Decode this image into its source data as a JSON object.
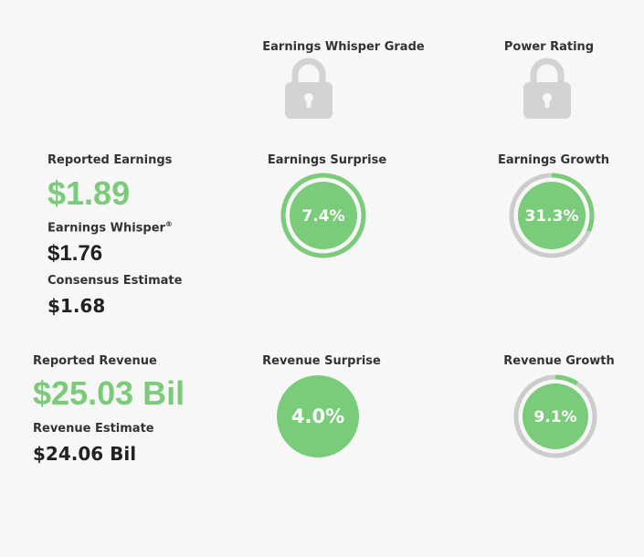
{
  "headers": {
    "whisper_grade": "Earnings Whisper Grade",
    "power_rating": "Power Rating"
  },
  "earnings": {
    "reported_label": "Reported Earnings",
    "reported_value": "$1.89",
    "whisper_label": "Earnings Whisper",
    "whisper_mark": "®",
    "whisper_value": "$1.76",
    "consensus_label": "Consensus Estimate",
    "consensus_value": "$1.68",
    "surprise_label": "Earnings Surprise",
    "surprise_value": "7.4%",
    "growth_label": "Earnings Growth",
    "growth_value": "31.3%"
  },
  "revenue": {
    "reported_label": "Reported Revenue",
    "reported_value": "$25.03 Bil",
    "estimate_label": "Revenue Estimate",
    "estimate_value": "$24.06 Bil",
    "surprise_label": "Revenue Surprise",
    "surprise_value": "4.0%",
    "growth_label": "Revenue Growth",
    "growth_value": "9.1%"
  },
  "gauges": {
    "earnings_surprise_fraction": 1.0,
    "earnings_growth_fraction": 0.313,
    "revenue_surprise_fraction": 1.0,
    "revenue_growth_fraction": 0.091
  },
  "icons": {
    "whisper_grade": "lock-icon",
    "power_rating": "lock-icon"
  },
  "colors": {
    "green": "#7acc7a",
    "ring_track": "#cccccc",
    "lock": "#d3d3d3",
    "text_dark": "#222222"
  }
}
